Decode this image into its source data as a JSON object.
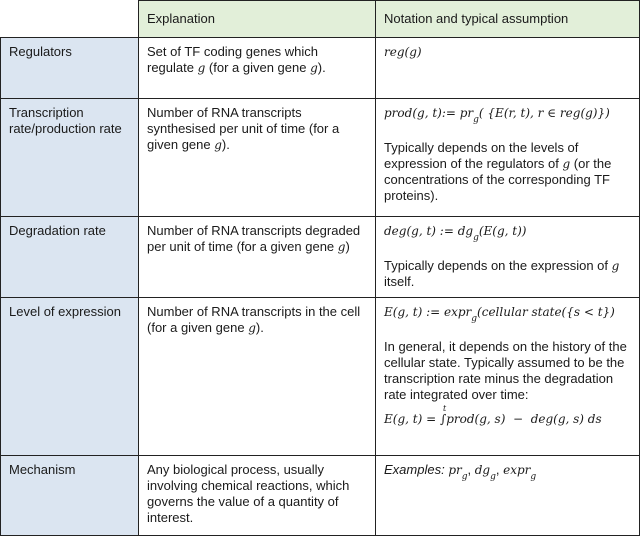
{
  "header": {
    "explanation": "Explanation",
    "notation": "Notation and typical assumption"
  },
  "rows": [
    {
      "label": "Regulators",
      "expl": [
        "Set of TF coding genes which regulate ",
        "g",
        " (for a given gene ",
        "g",
        ")."
      ],
      "formula": "reg(g)"
    },
    {
      "label": "Transcription rate/production rate",
      "expl": [
        "Number of RNA transcripts synthesised per unit of time (for a given gene ",
        "g",
        ")."
      ],
      "formula_pre": "prod(g, t):= pr",
      "formula_sub": "g",
      "formula_post": "( {E(r, t), r ∈ reg(g)})",
      "note": [
        "Typically depends on the levels of expression of the regulators of ",
        "g",
        " (or the concentrations of the corresponding TF proteins)."
      ]
    },
    {
      "label": "Degradation rate",
      "expl": [
        "Number of RNA transcripts degraded per unit of time (for a given gene ",
        "g",
        ")"
      ],
      "formula_pre": "deg(g, t) :=  dg",
      "formula_sub": "g",
      "formula_post": "(E(g, t))",
      "note": [
        "Typically depends on the expression of ",
        "g",
        " itself."
      ]
    },
    {
      "label": "Level of expression",
      "expl": [
        "Number of RNA transcripts in the cell (for a given gene ",
        "g",
        ")."
      ],
      "formula_pre": "E(g, t) :=  expr",
      "formula_sub": "g",
      "formula_post": "(cellular state({s < t})",
      "note": "In general, it depends on the history of the cellular state. Typically assumed to be the transcription rate minus the degradation rate integrated over time:",
      "integral": {
        "lhs": "E(g, t) = ",
        "upper": "t",
        "sign": "∫",
        "body": "prod(g, s)  −  deg(g, s) ds"
      }
    },
    {
      "label": "Mechanism",
      "expl": "Any biological process, usually involving chemical reactions, which governs the value of a quantity of interest.",
      "examples_label": "Examples:",
      "examples": [
        {
          "base": "pr",
          "sub": "g"
        },
        {
          "base": "dg",
          "sub": "g"
        },
        {
          "base": "expr",
          "sub": "g"
        }
      ]
    }
  ]
}
